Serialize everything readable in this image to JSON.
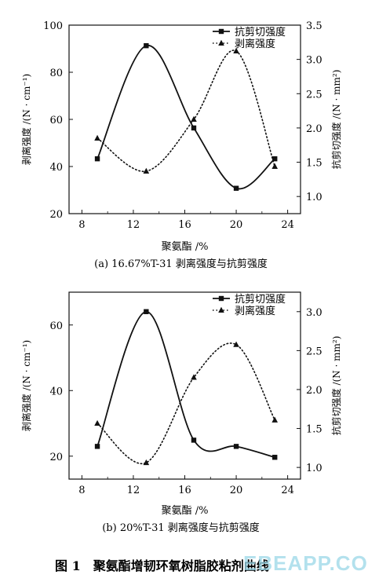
{
  "chart_data": [
    {
      "type": "line",
      "title": "",
      "caption": "(a) 16.67%T-31 剥离强度与抗剪强度",
      "xlabel": "聚氨酯 /%",
      "ylabel_left": "剥离强度 /(N · cm⁻¹)",
      "ylabel_right": "抗剪切强度 /(N · mm²)",
      "xlim": [
        7,
        25
      ],
      "ylim_left": [
        20,
        100
      ],
      "ylim_right": [
        0.75,
        3.5
      ],
      "x_ticks": [
        "8",
        "12",
        "16",
        "20",
        "24"
      ],
      "y_left_ticks": [
        "20",
        "40",
        "60",
        "80",
        "100"
      ],
      "y_right_ticks": [
        "1.0",
        "1.5",
        "2.0",
        "2.5",
        "3.0",
        "3.5"
      ],
      "legend_position": "top-right",
      "series": [
        {
          "name": "抗剪切强度",
          "axis": "right",
          "style": "solid",
          "marker": "square",
          "x": [
            9.2,
            13.0,
            16.7,
            20.0,
            23.0
          ],
          "y": [
            1.55,
            3.2,
            2.0,
            1.12,
            1.55
          ]
        },
        {
          "name": "剥离强度",
          "axis": "left",
          "style": "dotted",
          "marker": "triangle",
          "x": [
            9.2,
            13.0,
            16.7,
            20.0,
            23.0
          ],
          "y": [
            52,
            38,
            60,
            89,
            40
          ]
        }
      ]
    },
    {
      "type": "line",
      "title": "",
      "caption": "(b) 20%T-31 剥离强度与抗剪强度",
      "xlabel": "聚氨酯 /%",
      "ylabel_left": "剥离强度 /(N · cm⁻¹)",
      "ylabel_right": "抗剪切强度 /(N · mm²)",
      "xlim": [
        7,
        25
      ],
      "ylim_left": [
        13,
        70
      ],
      "ylim_right": [
        0.85,
        3.25
      ],
      "x_ticks": [
        "8",
        "12",
        "16",
        "20",
        "24"
      ],
      "y_left_ticks": [
        "20",
        "40",
        "60"
      ],
      "y_right_ticks": [
        "1.0",
        "1.5",
        "2.0",
        "2.5",
        "3.0"
      ],
      "legend_position": "top-right",
      "series": [
        {
          "name": "抗剪切强度",
          "axis": "right",
          "style": "solid",
          "marker": "square",
          "x": [
            9.2,
            13.0,
            16.7,
            20.0,
            23.0
          ],
          "y": [
            1.27,
            3.0,
            1.35,
            1.27,
            1.13
          ]
        },
        {
          "name": "剥离强度",
          "axis": "left",
          "style": "dotted",
          "marker": "triangle",
          "x": [
            9.2,
            13.0,
            16.7,
            20.0,
            23.0
          ],
          "y": [
            30,
            18,
            44,
            54,
            31
          ]
        }
      ]
    }
  ],
  "figure_caption": "图 1　聚氨酯增韧环氧树脂胶粘剂曲线",
  "watermark": "EBEAPP.COM"
}
